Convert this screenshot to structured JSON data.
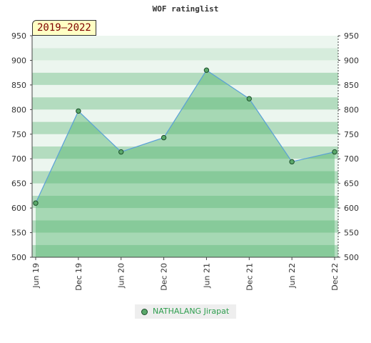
{
  "chart_data": {
    "type": "area",
    "title": "WOF ratinglist",
    "period_label": "2019–2022",
    "x_ticks": [
      "Jun 19",
      "Dec 19",
      "Jun 20",
      "Dec 20",
      "Jun 21",
      "Dec 21",
      "Jun 22",
      "Dec 22"
    ],
    "y_ticks": [
      500,
      550,
      600,
      650,
      700,
      750,
      800,
      850,
      900,
      950
    ],
    "ylim": [
      500,
      950
    ],
    "grid": true,
    "legend_position": "bottom",
    "series": [
      {
        "name": "NATHALANG Jirapat",
        "values": [
          610,
          797,
          714,
          743,
          880,
          822,
          694,
          714
        ]
      }
    ]
  },
  "colors": {
    "band_light": "#ecf6ef",
    "band_pale": "#d6ecdc",
    "band_mid": "#b3dcbf",
    "area_fill": "#52b36c",
    "line": "#5aa0d8",
    "marker_fill": "#5aa86a",
    "legend_text": "#2e9e4e"
  }
}
